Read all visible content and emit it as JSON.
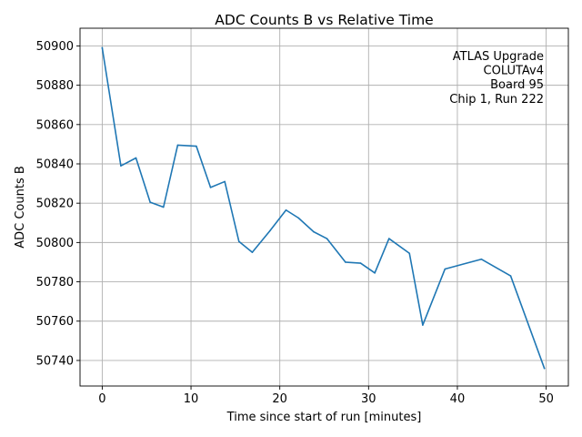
{
  "chart_data": {
    "type": "line",
    "title": "ADC Counts B vs Relative Time",
    "xlabel": "Time since start of run [minutes]",
    "ylabel": "ADC Counts B",
    "xlim": [
      -2.5,
      52.5
    ],
    "ylim": [
      50727,
      50909
    ],
    "xticks": [
      0,
      10,
      20,
      30,
      40,
      50
    ],
    "yticks": [
      50740,
      50760,
      50780,
      50800,
      50820,
      50840,
      50860,
      50880,
      50900
    ],
    "grid": true,
    "legend": "none",
    "annotation_lines": [
      "ATLAS Upgrade",
      "COLUTAv4",
      "Board 95",
      "Chip 1, Run 222"
    ],
    "annotation_position": "top-right",
    "series": [
      {
        "name": "ADC Counts B",
        "color": "#1f77b4",
        "x": [
          0,
          2.1,
          3.8,
          5.4,
          6.9,
          8.5,
          10.6,
          12.2,
          13.8,
          15.4,
          16.9,
          18.9,
          20.7,
          22.1,
          23.8,
          25.3,
          27.4,
          29.1,
          30.7,
          32.3,
          34.6,
          36.1,
          38.6,
          42.7,
          46.0,
          49.8
        ],
        "y": [
          50899,
          50839,
          50843,
          50820.5,
          50818,
          50849.5,
          50849,
          50828,
          50831,
          50800.5,
          50795,
          50806,
          50816.5,
          50812.5,
          50805.5,
          50802,
          50790,
          50789.5,
          50784.5,
          50802,
          50794.5,
          50758,
          50786.5,
          50791.5,
          50783,
          50736
        ]
      }
    ]
  }
}
